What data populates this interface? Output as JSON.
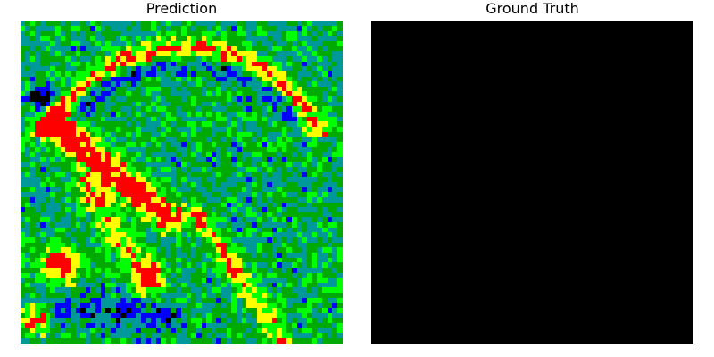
{
  "panels": {
    "prediction": {
      "title": "Prediction",
      "colormap": [
        "#000000",
        "#0000ff",
        "#009999",
        "#00aa00",
        "#00ff00",
        "#ffff00",
        "#ff0000"
      ]
    },
    "ground_truth": {
      "title": "Ground Truth",
      "fill_color": "#000000"
    }
  }
}
